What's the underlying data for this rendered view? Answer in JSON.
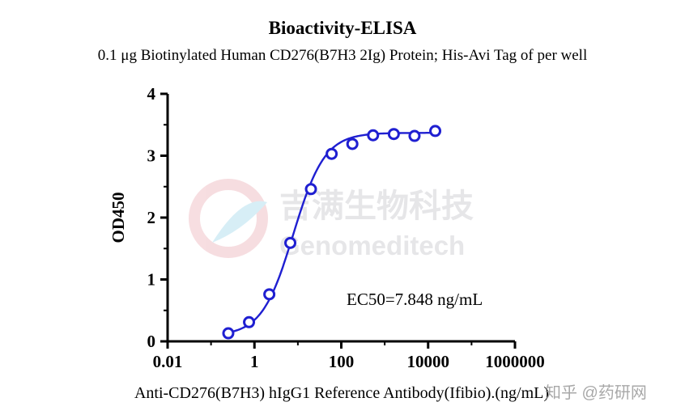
{
  "chart_data": {
    "type": "scatter",
    "title": "Bioactivity-ELISA",
    "subtitle": "0.1 μg Biotinylated Human CD276(B7H3 2Ig) Protein; His-Avi Tag of per well",
    "xlabel": "Anti-CD276(B7H3) hIgG1 Reference Antibody(Ifibio).(ng/mL)",
    "ylabel": "OD450",
    "x_scale": "log",
    "xlim": [
      0.01,
      1000000
    ],
    "ylim": [
      0,
      4
    ],
    "x_ticks": [
      "0.01",
      "1",
      "100",
      "10000",
      "1000000"
    ],
    "y_ticks": [
      "0",
      "1",
      "2",
      "3",
      "4"
    ],
    "annotation": "EC50=7.848 ng/mL",
    "fit": {
      "type": "4PL",
      "bottom": 0.09,
      "top": 3.37,
      "ec50": 7.848,
      "hill": 1.2
    },
    "series": [
      {
        "x": [
          0.25,
          0.75,
          2.2,
          6.7,
          20,
          60,
          180,
          540,
          1620,
          4860,
          14580
        ],
        "y": [
          0.13,
          0.31,
          0.76,
          1.59,
          2.46,
          3.03,
          3.19,
          3.33,
          3.35,
          3.32,
          3.4
        ]
      }
    ],
    "colors": {
      "series": "#1f1fd1",
      "axis": "#000000"
    },
    "grid": false
  },
  "watermark": {
    "cn": "吉满生物科技",
    "en": "Genomeditech",
    "zhihu": "知乎 @药研网"
  }
}
